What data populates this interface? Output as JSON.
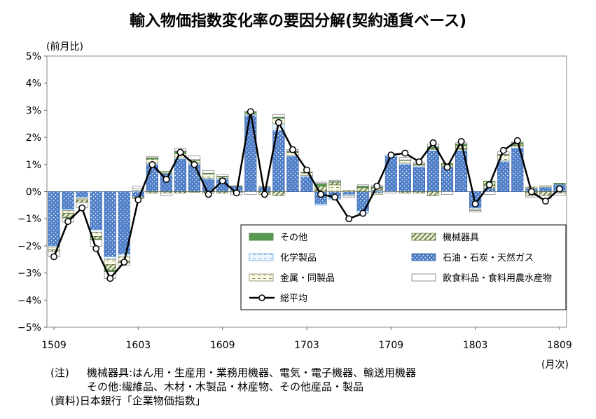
{
  "title": "輸入物価指数変化率の要因分解(契約通貨ベース)",
  "unit_label": "(前月比)",
  "x_unit_label": "(月次)",
  "notes": {
    "label1": "(注)",
    "line1": "機械器具:はん用・生産用・業務用機器、電気・電子機器、輸送用機器",
    "line2": "その他:繊維品、木材・木製品・林産物、その他産品・製品",
    "label3": "(資料)",
    "line3": "日本銀行「企業物価指数」"
  },
  "chart_data": {
    "type": "bar",
    "stacked": true,
    "title": "輸入物価指数変化率の要因分解(契約通貨ベース)",
    "ylabel": "(前月比)",
    "xlabel": "(月次)",
    "ylim": [
      -5,
      5
    ],
    "yticks": [
      "5%",
      "4%",
      "3%",
      "2%",
      "1%",
      "0%",
      "−1%",
      "−2%",
      "−3%",
      "−4%",
      "−5%"
    ],
    "ytick_values": [
      5,
      4,
      3,
      2,
      1,
      0,
      -1,
      -2,
      -3,
      -4,
      -5
    ],
    "x_tick_labels": [
      {
        "label": "1509",
        "index": 0
      },
      {
        "label": "1603",
        "index": 6
      },
      {
        "label": "1609",
        "index": 12
      },
      {
        "label": "1703",
        "index": 18
      },
      {
        "label": "1709",
        "index": 24
      },
      {
        "label": "1803",
        "index": 30
      },
      {
        "label": "1809",
        "index": 36
      }
    ],
    "categories": [
      "1509",
      "1510",
      "1511",
      "1512",
      "1601",
      "1602",
      "1603",
      "1604",
      "1605",
      "1606",
      "1607",
      "1608",
      "1609",
      "1610",
      "1611",
      "1612",
      "1701",
      "1702",
      "1703",
      "1704",
      "1705",
      "1706",
      "1707",
      "1708",
      "1709",
      "1710",
      "1711",
      "1712",
      "1801",
      "1802",
      "1803",
      "1804",
      "1805",
      "1806",
      "1807",
      "1808",
      "1809"
    ],
    "legend_position": "bottom-right",
    "series": [
      {
        "name": "石油・石炭・天然ガス",
        "kind": "bar",
        "color": "#4f7fc8",
        "pattern": "dots",
        "values": [
          -2.0,
          -0.65,
          -0.2,
          -1.4,
          -2.4,
          -2.3,
          -0.2,
          1.0,
          0.65,
          1.2,
          1.0,
          0.45,
          0.45,
          0.2,
          2.8,
          0.15,
          2.25,
          1.3,
          0.55,
          -0.45,
          -0.25,
          -0.1,
          -0.7,
          -0.05,
          1.3,
          1.0,
          0.9,
          1.5,
          0.9,
          1.5,
          -0.6,
          0.1,
          1.1,
          1.6,
          0.1,
          0.15,
          0.25
        ]
      },
      {
        "name": "化学製品",
        "kind": "bar",
        "color": "#dcecf8",
        "pattern": "dash",
        "values": [
          -0.05,
          -0.05,
          -0.05,
          -0.1,
          -0.1,
          -0.1,
          0.05,
          0.05,
          0.02,
          0.05,
          0.05,
          0.05,
          0.05,
          0.0,
          0.05,
          0.02,
          0.25,
          0.05,
          0.05,
          -0.05,
          -0.05,
          -0.05,
          -0.1,
          0.05,
          0.05,
          0.05,
          0.05,
          0.05,
          0.02,
          0.05,
          -0.05,
          0.02,
          0.05,
          0.05,
          0.02,
          0.02,
          0.02
        ]
      },
      {
        "name": "金属・同製品",
        "kind": "bar",
        "color": "#fbfbe8",
        "pattern": "hdash",
        "values": [
          -0.1,
          -0.1,
          -0.05,
          -0.15,
          -0.2,
          -0.15,
          0.05,
          0.15,
          0.05,
          0.15,
          0.1,
          0.15,
          0.05,
          0.02,
          0.05,
          0.02,
          0.2,
          0.1,
          0.1,
          0.05,
          0.25,
          0.05,
          0.0,
          -0.05,
          0.0,
          0.1,
          0.05,
          0.05,
          0.05,
          0.05,
          -0.05,
          0.1,
          0.2,
          0.05,
          0.05,
          0.05,
          0.02
        ]
      },
      {
        "name": "機械器具",
        "kind": "bar",
        "color": "#6b8e23",
        "pattern": "diagonal",
        "values": [
          -0.05,
          -0.15,
          -0.1,
          -0.1,
          -0.2,
          -0.05,
          -0.05,
          -0.05,
          -0.05,
          -0.05,
          -0.02,
          -0.05,
          -0.05,
          -0.02,
          0.0,
          -0.1,
          -0.15,
          0.0,
          0.0,
          0.15,
          0.1,
          0.0,
          0.15,
          0.1,
          0.0,
          -0.05,
          -0.05,
          -0.15,
          0.05,
          0.1,
          0.0,
          0.15,
          0.0,
          0.05,
          -0.15,
          -0.15,
          -0.05
        ]
      },
      {
        "name": "その他",
        "kind": "bar",
        "color": "#5a9a50",
        "pattern": "solid",
        "values": [
          0.0,
          -0.02,
          0.0,
          -0.02,
          -0.05,
          -0.02,
          0.0,
          0.05,
          0.02,
          0.1,
          0.03,
          0.03,
          0.02,
          0.0,
          0.05,
          0.0,
          0.05,
          0.05,
          0.02,
          0.1,
          0.02,
          0.0,
          0.05,
          0.02,
          0.0,
          0.02,
          0.02,
          0.05,
          0.02,
          0.05,
          0.0,
          0.02,
          0.02,
          0.05,
          0.0,
          0.0,
          0.02
        ]
      },
      {
        "name": "飲食料品・食料用農水産物",
        "kind": "bar",
        "color": "#ffffff",
        "pattern": "empty",
        "values": [
          -0.2,
          -0.15,
          -0.2,
          -0.25,
          -0.25,
          -0.1,
          0.1,
          0.05,
          -0.1,
          0.1,
          0.15,
          0.1,
          0.05,
          -0.1,
          -0.1,
          0.0,
          0.1,
          0.05,
          0.0,
          0.05,
          0.05,
          -0.05,
          0.05,
          0.05,
          -0.05,
          0.1,
          0.05,
          0.1,
          -0.1,
          0.05,
          -0.05,
          -0.1,
          0.1,
          0.05,
          -0.05,
          -0.1,
          -0.1
        ]
      },
      {
        "name": "総平均",
        "kind": "line",
        "color": "#000000",
        "values": [
          -2.4,
          -1.1,
          -0.6,
          -2.1,
          -3.2,
          -2.6,
          -0.3,
          1.0,
          0.45,
          1.45,
          1.0,
          -0.1,
          0.4,
          -0.05,
          2.95,
          -0.1,
          2.55,
          1.55,
          0.8,
          -0.1,
          -0.2,
          -1.0,
          -0.8,
          0.2,
          1.35,
          1.42,
          1.1,
          1.8,
          0.9,
          1.85,
          -0.45,
          0.25,
          1.52,
          1.88,
          0.0,
          -0.35,
          0.1
        ]
      }
    ]
  },
  "legend": [
    {
      "name": "その他",
      "kind": "solid"
    },
    {
      "name": "機械器具",
      "kind": "diagonal"
    },
    {
      "name": "化学製品",
      "kind": "dash"
    },
    {
      "name": "石油・石炭・天然ガス",
      "kind": "dots"
    },
    {
      "name": "金属・同製品",
      "kind": "hdash"
    },
    {
      "name": "飲食料品・食料用農水産物",
      "kind": "empty"
    },
    {
      "name": "総平均",
      "kind": "line"
    }
  ]
}
